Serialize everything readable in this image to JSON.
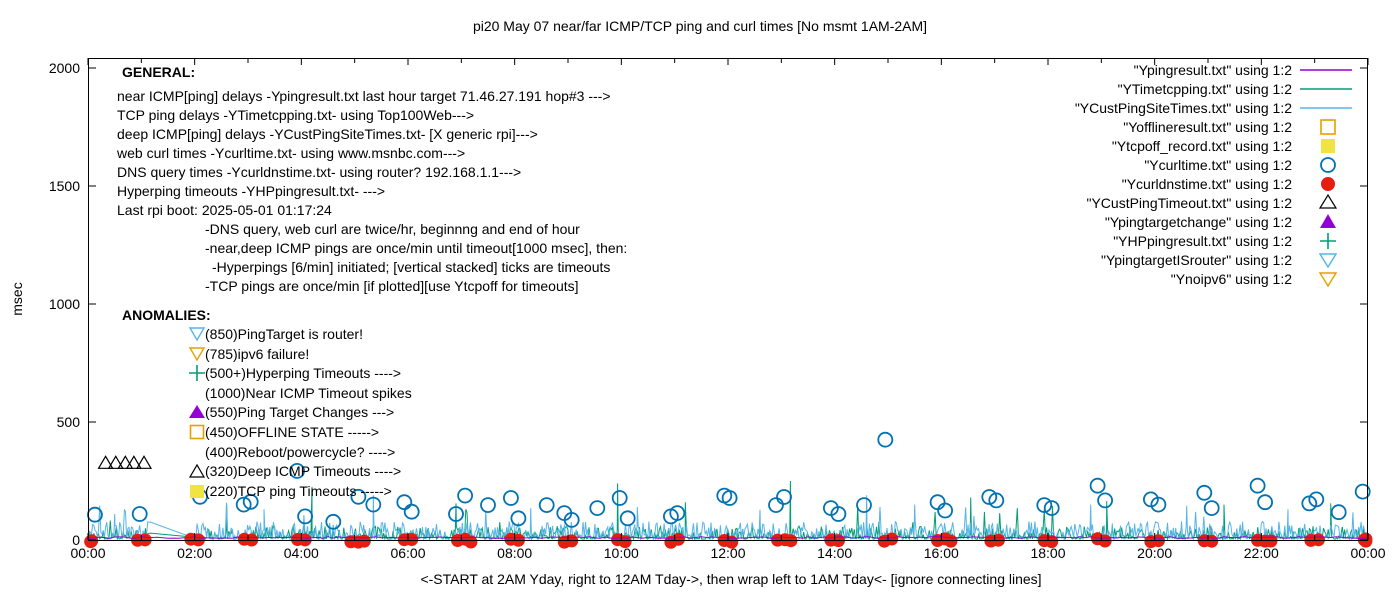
{
  "title": "pi20 May 07  near/far ICMP/TCP ping and curl times [No msmt 1AM-2AM]",
  "ylabel": "msec",
  "xcaption": "<-START at 2AM Yday, right to 12AM Tday->, then wrap left to 1AM Tday<- [ignore connecting lines]",
  "palette": {
    "purple": "#9400d3",
    "teal": "#009e73",
    "sky": "#56b4e9",
    "orange": "#e69f00",
    "yellow": "#f0e442",
    "blue": "#0072b2",
    "red": "#e51e10",
    "black": "#000000"
  },
  "general": {
    "heading": "GENERAL:",
    "lines": [
      "near ICMP[ping] delays -Ypingresult.txt last hour target 71.46.27.191 hop#3 --->",
      "TCP ping delays -YTimetcpping.txt- using Top100Web--->",
      "deep ICMP[ping] delays -YCustPingSiteTimes.txt- [X generic rpi]--->",
      "web curl times -Ycurltime.txt- using www.msnbc.com--->",
      "DNS query times -Ycurldnstime.txt- using router? 192.168.1.1--->",
      "Hyperping timeouts -YHPpingresult.txt- --->",
      "Last rpi boot: 2025-05-01 01:17:24"
    ],
    "indent_lines": [
      "-DNS query, web curl are twice/hr, beginnng and end of hour",
      "-near,deep ICMP pings are once/min until timeout[1000 msec], then:",
      "-Hyperpings [6/min] initiated; [vertical stacked] ticks are timeouts",
      "-TCP pings are once/min [if plotted][use Ytcpoff for timeouts]"
    ]
  },
  "anomalies": {
    "heading": "ANOMALIES:",
    "items": [
      {
        "icon": "triangle-down-open-sky",
        "text": "(850)PingTarget is router!"
      },
      {
        "icon": "triangle-down-open-orange",
        "text": "(785)ipv6 failure!"
      },
      {
        "icon": "plus-teal",
        "text": "(500+)Hyperping Timeouts ---->"
      },
      {
        "icon": "none",
        "text": "(1000)Near ICMP Timeout spikes"
      },
      {
        "icon": "triangle-up-fill-purple",
        "text": "(550)Ping Target Changes --->"
      },
      {
        "icon": "square-open-orange",
        "text": "(450)OFFLINE STATE ----->"
      },
      {
        "icon": "none",
        "text": "(400)Reboot/powercycle? ---->"
      },
      {
        "icon": "triangle-up-open-black",
        "text": "(320)Deep ICMP Timeouts ---->"
      },
      {
        "icon": "square-fill-yellow",
        "text": "(220)TCP ping Timeouts ----->"
      }
    ]
  },
  "legend": {
    "entries": [
      {
        "label": "\"Ypingresult.txt\" using 1:2",
        "sample": "line",
        "color_key": "purple"
      },
      {
        "label": "\"YTimetcpping.txt\" using 1:2",
        "sample": "line",
        "color_key": "teal"
      },
      {
        "label": "\"YCustPingSiteTimes.txt\" using 1:2",
        "sample": "line",
        "color_key": "sky"
      },
      {
        "label": "\"Yofflineresult.txt\" using 1:2",
        "sample": "square-open",
        "color_key": "orange"
      },
      {
        "label": "\"Ytcpoff_record.txt\" using 1:2",
        "sample": "square-fill",
        "color_key": "yellow"
      },
      {
        "label": "\"Ycurltime.txt\" using 1:2",
        "sample": "circle-open",
        "color_key": "blue"
      },
      {
        "label": "\"Ycurldnstime.txt\" using 1:2",
        "sample": "circle-fill",
        "color_key": "red"
      },
      {
        "label": "\"YCustPingTimeout.txt\" using 1:2",
        "sample": "triangle-up-open",
        "color_key": "black"
      },
      {
        "label": "\"Ypingtargetchange\" using 1:2",
        "sample": "triangle-up-fill",
        "color_key": "purple"
      },
      {
        "label": "\"YHPpingresult.txt\" using 1:2",
        "sample": "plus",
        "color_key": "teal"
      },
      {
        "label": "\"YpingtargetISrouter\" using 1:2",
        "sample": "triangle-down-open",
        "color_key": "sky"
      },
      {
        "label": "\"Ynoipv6\" using 1:2",
        "sample": "triangle-down-open",
        "color_key": "orange"
      }
    ]
  },
  "chart_data": {
    "type": "line+scatter",
    "title": "pi20 May 07  near/far ICMP/TCP ping and curl times [No msmt 1AM-2AM]",
    "ylabel": "msec",
    "ylim": [
      0,
      2000
    ],
    "xlim_hours": [
      0,
      24
    ],
    "grid": false,
    "legend_position": "top-right",
    "ytick_labels": [
      "0",
      "500",
      "1000",
      "1500",
      "2000"
    ],
    "ytick_values": [
      0,
      500,
      1000,
      1500,
      2000
    ],
    "xtick_labels": [
      "00:00",
      "02:00",
      "04:00",
      "06:00",
      "08:00",
      "10:00",
      "12:00",
      "14:00",
      "16:00",
      "18:00",
      "20:00",
      "22:00",
      "00:00"
    ],
    "xtick_hours": [
      0,
      2,
      4,
      6,
      8,
      10,
      12,
      14,
      16,
      18,
      20,
      22,
      24
    ],
    "measurement_gap_hours": [
      1.17,
      2.0
    ],
    "series": [
      {
        "name": "YTimetcpping.txt",
        "kind": "noise",
        "color_key": "teal",
        "seed": 1337,
        "step": 0.022,
        "base": 4,
        "amp": 55,
        "pow": 2.2,
        "spike_prob": 0.012,
        "spike_base": 70,
        "spike_amp": 90,
        "gap": true,
        "spikes": [
          [
            2.6,
            150
          ],
          [
            4.2,
            225
          ],
          [
            6.9,
            155
          ],
          [
            9.93,
            240
          ],
          [
            11.2,
            160
          ],
          [
            13.17,
            250
          ],
          [
            16.55,
            180
          ],
          [
            19.1,
            165
          ],
          [
            21.3,
            150
          ],
          [
            23.3,
            155
          ]
        ]
      },
      {
        "name": "YCustPingSiteTimes.txt",
        "kind": "noise",
        "color_key": "sky",
        "seed": 901,
        "step": 0.022,
        "base": 4,
        "amp": 75,
        "pow": 2.0,
        "spike_prob": 0.008,
        "spike_base": 70,
        "spike_amp": 100,
        "gap": true,
        "spikes": [
          [
            0.5,
            110
          ],
          [
            3.3,
            130
          ],
          [
            5.35,
            190
          ],
          [
            8.3,
            135
          ],
          [
            10.3,
            140
          ],
          [
            12.6,
            128
          ],
          [
            14.6,
            190
          ],
          [
            15.5,
            150
          ],
          [
            18.8,
            150
          ],
          [
            20.6,
            145
          ],
          [
            22.5,
            130
          ]
        ]
      },
      {
        "name": "Ycurldnstime.txt",
        "kind": "dots",
        "color_key": "red",
        "seed": 55,
        "radius": 6.5,
        "value_range": [
          1,
          8
        ],
        "every_hour": true,
        "wide_hours": [
          5,
          7,
          13,
          16,
          22,
          24
        ]
      },
      {
        "name": "Ypingresult.txt",
        "kind": "noise",
        "color_key": "purple",
        "seed": 77,
        "step": 0.1,
        "base": 7,
        "amp": 7,
        "pow": 1,
        "spike_prob": 0,
        "spike_base": 0,
        "spike_amp": 0,
        "gap": false,
        "spikes": []
      },
      {
        "name": "Ycurltime.txt",
        "kind": "scatter",
        "marker": "circle-open",
        "color_key": "blue",
        "size": 7,
        "points": [
          [
            0.13,
            107
          ],
          [
            0.97,
            110
          ],
          [
            2.1,
            183
          ],
          [
            2.92,
            150
          ],
          [
            3.05,
            162
          ],
          [
            3.92,
            293
          ],
          [
            4.07,
            100
          ],
          [
            4.6,
            77
          ],
          [
            5.07,
            183
          ],
          [
            5.35,
            150
          ],
          [
            5.93,
            160
          ],
          [
            6.07,
            120
          ],
          [
            6.9,
            110
          ],
          [
            7.07,
            188
          ],
          [
            7.5,
            148
          ],
          [
            7.93,
            178
          ],
          [
            8.07,
            92
          ],
          [
            8.6,
            148
          ],
          [
            8.93,
            114
          ],
          [
            9.07,
            85
          ],
          [
            9.55,
            135
          ],
          [
            9.97,
            178
          ],
          [
            10.12,
            92
          ],
          [
            10.93,
            100
          ],
          [
            11.05,
            114
          ],
          [
            11.93,
            188
          ],
          [
            12.03,
            178
          ],
          [
            12.9,
            148
          ],
          [
            13.05,
            182
          ],
          [
            13.93,
            135
          ],
          [
            14.07,
            110
          ],
          [
            14.55,
            148
          ],
          [
            14.95,
            425
          ],
          [
            15.93,
            160
          ],
          [
            16.07,
            125
          ],
          [
            16.9,
            182
          ],
          [
            17.03,
            168
          ],
          [
            17.93,
            148
          ],
          [
            18.07,
            135
          ],
          [
            18.93,
            230
          ],
          [
            19.07,
            168
          ],
          [
            19.93,
            172
          ],
          [
            20.07,
            150
          ],
          [
            20.93,
            200
          ],
          [
            21.07,
            135
          ],
          [
            21.93,
            230
          ],
          [
            22.07,
            160
          ],
          [
            22.9,
            155
          ],
          [
            23.03,
            172
          ],
          [
            23.45,
            118
          ],
          [
            23.9,
            205
          ]
        ]
      },
      {
        "name": "YCustPingTimeout.txt",
        "kind": "scatter",
        "marker": "triangle-up-open",
        "color_key": "black",
        "size": 7,
        "points": [
          [
            0.33,
            325
          ],
          [
            0.52,
            325
          ],
          [
            0.7,
            325
          ],
          [
            0.86,
            325
          ],
          [
            1.05,
            325
          ]
        ]
      }
    ]
  }
}
